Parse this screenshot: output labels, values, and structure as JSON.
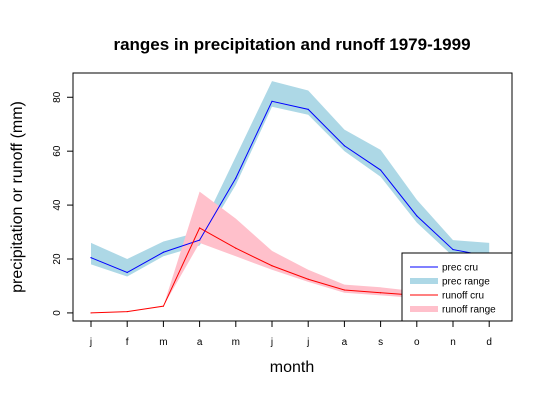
{
  "chart_data": {
    "type": "line",
    "title": "ranges in precipitation and runoff 1979-1999",
    "xlabel": "month",
    "ylabel": "precipitation or runoff (mm)",
    "categories": [
      "j",
      "f",
      "m",
      "a",
      "m",
      "j",
      "j",
      "a",
      "s",
      "o",
      "n",
      "d"
    ],
    "ylim": [
      -3,
      89
    ],
    "yticks": [
      0,
      20,
      40,
      60,
      80
    ],
    "grid": false,
    "legend_position": "bottom-right",
    "series": [
      {
        "name": "prec cru",
        "kind": "line",
        "color": "#0000FF",
        "values": [
          20.5,
          15,
          22.5,
          27,
          50,
          78.5,
          75.5,
          62,
          53,
          36,
          23.5,
          21
        ]
      },
      {
        "name": "prec range",
        "kind": "band",
        "color": "#ADD8E6",
        "lower": [
          18,
          13.5,
          21,
          25,
          47.5,
          76.5,
          73.5,
          60,
          50.5,
          33.5,
          21,
          19.5
        ],
        "upper": [
          26,
          20,
          26.5,
          30,
          58,
          86,
          82.5,
          68,
          60.5,
          42,
          27,
          26
        ]
      },
      {
        "name": "runoff cru",
        "kind": "line",
        "color": "#FF0000",
        "values": [
          0,
          0.5,
          2.5,
          31.5,
          24,
          17.5,
          12.5,
          8.5,
          7.5,
          6.5,
          6.5,
          6.5
        ]
      },
      {
        "name": "runoff range",
        "kind": "band",
        "color": "#FFC0CB",
        "lower": [
          0,
          0.5,
          2.5,
          26,
          21,
          16,
          11.5,
          7.5,
          6.5,
          5.5,
          5.5,
          5.5
        ],
        "upper": [
          0,
          0.5,
          2.5,
          45,
          35,
          23,
          16,
          10.5,
          9.5,
          8,
          8,
          8
        ]
      }
    ]
  }
}
